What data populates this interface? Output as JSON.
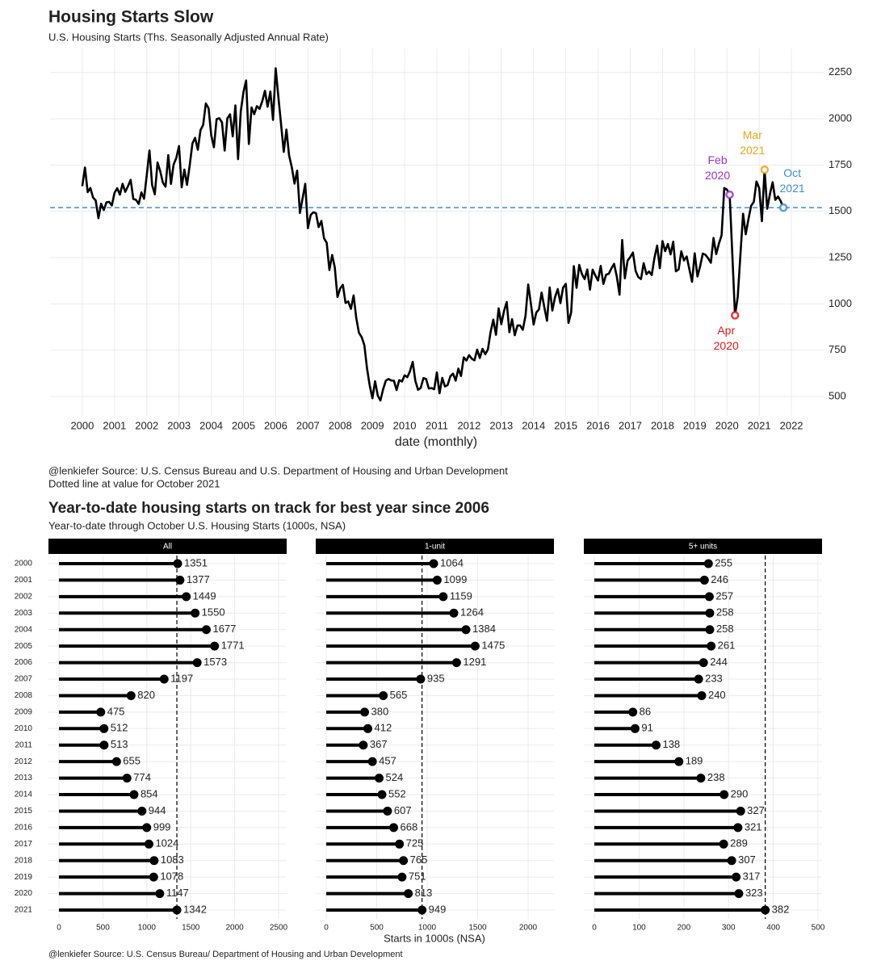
{
  "chart_data": [
    {
      "type": "line",
      "title": "Housing Starts Slow",
      "subtitle": "U.S. Housing Starts (Ths. Seasonally Adjusted Annual Rate)",
      "x_label": "date (monthly)",
      "caption": [
        "@lenkiefer Source: U.S. Census Bureau and U.S. Department of Housing and Urban Development",
        "Dotted line at value for October 2021"
      ],
      "xlim": [
        1999,
        2023
      ],
      "xticks": [
        2000,
        2001,
        2002,
        2003,
        2004,
        2005,
        2006,
        2007,
        2008,
        2009,
        2010,
        2011,
        2012,
        2013,
        2014,
        2015,
        2016,
        2017,
        2018,
        2019,
        2020,
        2021,
        2022
      ],
      "ylim": [
        395,
        2380
      ],
      "yticks": [
        500,
        750,
        1000,
        1250,
        1500,
        1750,
        2000,
        2250
      ],
      "grid": true,
      "reference_line_color": "#3a8fd9",
      "x": [
        "2000-01",
        "2000-02",
        "2000-03",
        "2000-04",
        "2000-05",
        "2000-06",
        "2000-07",
        "2000-08",
        "2000-09",
        "2000-10",
        "2000-11",
        "2000-12",
        "2001-01",
        "2001-02",
        "2001-03",
        "2001-04",
        "2001-05",
        "2001-06",
        "2001-07",
        "2001-08",
        "2001-09",
        "2001-10",
        "2001-11",
        "2001-12",
        "2002-01",
        "2002-02",
        "2002-03",
        "2002-04",
        "2002-05",
        "2002-06",
        "2002-07",
        "2002-08",
        "2002-09",
        "2002-10",
        "2002-11",
        "2002-12",
        "2003-01",
        "2003-02",
        "2003-03",
        "2003-04",
        "2003-05",
        "2003-06",
        "2003-07",
        "2003-08",
        "2003-09",
        "2003-10",
        "2003-11",
        "2003-12",
        "2004-01",
        "2004-02",
        "2004-03",
        "2004-04",
        "2004-05",
        "2004-06",
        "2004-07",
        "2004-08",
        "2004-09",
        "2004-10",
        "2004-11",
        "2004-12",
        "2005-01",
        "2005-02",
        "2005-03",
        "2005-04",
        "2005-05",
        "2005-06",
        "2005-07",
        "2005-08",
        "2005-09",
        "2005-10",
        "2005-11",
        "2005-12",
        "2006-01",
        "2006-02",
        "2006-03",
        "2006-04",
        "2006-05",
        "2006-06",
        "2006-07",
        "2006-08",
        "2006-09",
        "2006-10",
        "2006-11",
        "2006-12",
        "2007-01",
        "2007-02",
        "2007-03",
        "2007-04",
        "2007-05",
        "2007-06",
        "2007-07",
        "2007-08",
        "2007-09",
        "2007-10",
        "2007-11",
        "2007-12",
        "2008-01",
        "2008-02",
        "2008-03",
        "2008-04",
        "2008-05",
        "2008-06",
        "2008-07",
        "2008-08",
        "2008-09",
        "2008-10",
        "2008-11",
        "2008-12",
        "2009-01",
        "2009-02",
        "2009-03",
        "2009-04",
        "2009-05",
        "2009-06",
        "2009-07",
        "2009-08",
        "2009-09",
        "2009-10",
        "2009-11",
        "2009-12",
        "2010-01",
        "2010-02",
        "2010-03",
        "2010-04",
        "2010-05",
        "2010-06",
        "2010-07",
        "2010-08",
        "2010-09",
        "2010-10",
        "2010-11",
        "2010-12",
        "2011-01",
        "2011-02",
        "2011-03",
        "2011-04",
        "2011-05",
        "2011-06",
        "2011-07",
        "2011-08",
        "2011-09",
        "2011-10",
        "2011-11",
        "2011-12",
        "2012-01",
        "2012-02",
        "2012-03",
        "2012-04",
        "2012-05",
        "2012-06",
        "2012-07",
        "2012-08",
        "2012-09",
        "2012-10",
        "2012-11",
        "2012-12",
        "2013-01",
        "2013-02",
        "2013-03",
        "2013-04",
        "2013-05",
        "2013-06",
        "2013-07",
        "2013-08",
        "2013-09",
        "2013-10",
        "2013-11",
        "2013-12",
        "2014-01",
        "2014-02",
        "2014-03",
        "2014-04",
        "2014-05",
        "2014-06",
        "2014-07",
        "2014-08",
        "2014-09",
        "2014-10",
        "2014-11",
        "2014-12",
        "2015-01",
        "2015-02",
        "2015-03",
        "2015-04",
        "2015-05",
        "2015-06",
        "2015-07",
        "2015-08",
        "2015-09",
        "2015-10",
        "2015-11",
        "2015-12",
        "2016-01",
        "2016-02",
        "2016-03",
        "2016-04",
        "2016-05",
        "2016-06",
        "2016-07",
        "2016-08",
        "2016-09",
        "2016-10",
        "2016-11",
        "2016-12",
        "2017-01",
        "2017-02",
        "2017-03",
        "2017-04",
        "2017-05",
        "2017-06",
        "2017-07",
        "2017-08",
        "2017-09",
        "2017-10",
        "2017-11",
        "2017-12",
        "2018-01",
        "2018-02",
        "2018-03",
        "2018-04",
        "2018-05",
        "2018-06",
        "2018-07",
        "2018-08",
        "2018-09",
        "2018-10",
        "2018-11",
        "2018-12",
        "2019-01",
        "2019-02",
        "2019-03",
        "2019-04",
        "2019-05",
        "2019-06",
        "2019-07",
        "2019-08",
        "2019-09",
        "2019-10",
        "2019-11",
        "2019-12",
        "2020-01",
        "2020-02",
        "2020-03",
        "2020-04",
        "2020-05",
        "2020-06",
        "2020-07",
        "2020-08",
        "2020-09",
        "2020-10",
        "2020-11",
        "2020-12",
        "2021-01",
        "2021-02",
        "2021-03",
        "2021-04",
        "2021-05",
        "2021-06",
        "2021-07",
        "2021-08",
        "2021-09",
        "2021-10"
      ],
      "series": [
        {
          "color": "#000000",
          "values": [
            1636,
            1737,
            1604,
            1626,
            1575,
            1559,
            1463,
            1541,
            1507,
            1549,
            1551,
            1532,
            1600,
            1625,
            1590,
            1649,
            1605,
            1636,
            1670,
            1567,
            1562,
            1540,
            1602,
            1568,
            1698,
            1829,
            1642,
            1592,
            1764,
            1717,
            1655,
            1633,
            1804,
            1648,
            1753,
            1788,
            1853,
            1629,
            1726,
            1643,
            1751,
            1867,
            1897,
            1833,
            1939,
            1967,
            2083,
            2057,
            1911,
            1846,
            1998,
            2003,
            1981,
            1828,
            2002,
            2024,
            1905,
            2072,
            1782,
            2042,
            2144,
            2207,
            1864,
            2061,
            2025,
            2068,
            2054,
            2095,
            2151,
            2065,
            2147,
            1994,
            2273,
            2119,
            1969,
            1821,
            1942,
            1802,
            1737,
            1650,
            1720,
            1491,
            1570,
            1649,
            1409,
            1480,
            1495,
            1490,
            1415,
            1448,
            1354,
            1330,
            1183,
            1264,
            1197,
            1037,
            1084,
            1103,
            1005,
            1013,
            973,
            1046,
            923,
            844,
            820,
            777,
            652,
            560,
            490,
            582,
            505,
            478,
            540,
            585,
            594,
            586,
            585,
            534,
            588,
            581,
            614,
            604,
            636,
            687,
            583,
            536,
            546,
            599,
            594,
            543,
            545,
            539,
            630,
            517,
            600,
            554,
            561,
            608,
            623,
            585,
            650,
            610,
            711,
            694,
            723,
            704,
            695,
            753,
            708,
            757,
            728,
            754,
            847,
            915,
            833,
            976,
            890,
            962,
            1010,
            847,
            917,
            831,
            883,
            883,
            860,
            936,
            1105,
            1003,
            888,
            953,
            970,
            1061,
            981,
            909,
            1089,
            964,
            1037,
            1080,
            1004,
            1088,
            1108,
            897,
            954,
            1204,
            1087,
            1211,
            1161,
            1134,
            1186,
            1077,
            1185,
            1153,
            1126,
            1205,
            1108,
            1158,
            1163,
            1192,
            1216,
            1146,
            1050,
            1345,
            1138,
            1234,
            1253,
            1277,
            1177,
            1145,
            1134,
            1220,
            1160,
            1175,
            1156,
            1247,
            1315,
            1193,
            1339,
            1285,
            1324,
            1267,
            1336,
            1176,
            1186,
            1284,
            1235,
            1256,
            1187,
            1119,
            1273,
            1148,
            1203,
            1272,
            1265,
            1246,
            1222,
            1356,
            1269,
            1326,
            1371,
            1626,
            1617,
            1590,
            1266,
            938,
            1038,
            1265,
            1487,
            1376,
            1459,
            1530,
            1551,
            1661,
            1625,
            1447,
            1725,
            1514,
            1594,
            1657,
            1562,
            1580,
            1555,
            1520
          ]
        }
      ],
      "annotations": [
        {
          "label": [
            "Feb",
            "2020"
          ],
          "x": "2020-02",
          "color": "#9b30d9",
          "position": "above-left"
        },
        {
          "label": [
            "Apr",
            "2020"
          ],
          "x": "2020-04",
          "color": "#e41a1c",
          "position": "below"
        },
        {
          "label": [
            "Mar",
            "2021"
          ],
          "x": "2021-03",
          "color": "#e6a817",
          "position": "above"
        },
        {
          "label": [
            "Oct",
            "2021"
          ],
          "x": "2021-10",
          "color": "#3a8fd9",
          "position": "above-right"
        }
      ]
    },
    {
      "type": "lollipop",
      "title": "Year-to-date housing starts on track for best year since 2006",
      "subtitle": "Year-to-date through October U.S. Housing Starts (1000s, NSA)",
      "x_label": "Starts in 1000s (NSA)",
      "caption": "@lenkiefer Source: U.S. Census Bureau/ Department of Housing and Urban Development",
      "categories": [
        "2000",
        "2001",
        "2002",
        "2003",
        "2004",
        "2005",
        "2006",
        "2007",
        "2008",
        "2009",
        "2010",
        "2011",
        "2012",
        "2013",
        "2014",
        "2015",
        "2016",
        "2017",
        "2018",
        "2019",
        "2020",
        "2021"
      ],
      "panels": [
        {
          "title": "All",
          "xlim": [
            -120,
            2592
          ],
          "xticks": [
            0,
            500,
            1000,
            1500,
            2000,
            2500
          ],
          "values": [
            1351,
            1377,
            1449,
            1550,
            1677,
            1771,
            1573,
            1197,
            820,
            475,
            512,
            513,
            655,
            774,
            854,
            944,
            999,
            1024,
            1083,
            1078,
            1147,
            1342
          ]
        },
        {
          "title": "1-unit",
          "xlim": [
            -104,
            2256
          ],
          "xticks": [
            0,
            500,
            1000,
            1500,
            2000
          ],
          "values": [
            1064,
            1099,
            1159,
            1264,
            1384,
            1475,
            1291,
            935,
            565,
            380,
            412,
            367,
            457,
            524,
            552,
            607,
            668,
            725,
            765,
            751,
            813,
            949
          ]
        },
        {
          "title": "5+ units",
          "xlim": [
            -23.5,
            509
          ],
          "xticks": [
            0,
            100,
            200,
            300,
            400,
            500
          ],
          "values": [
            255,
            246,
            257,
            258,
            258,
            261,
            244,
            233,
            240,
            86,
            91,
            138,
            189,
            238,
            290,
            327,
            321,
            289,
            307,
            317,
            323,
            382
          ]
        }
      ]
    }
  ]
}
